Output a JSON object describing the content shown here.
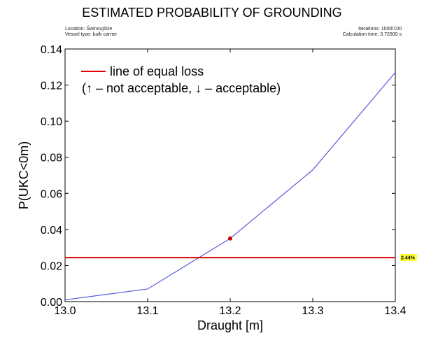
{
  "chart_data": {
    "type": "line",
    "title": "ESTIMATED PROBABILITY OF GROUNDING",
    "info_left": [
      "Location: Świnoujście",
      "Vessel type: bulk carrier"
    ],
    "info_right": [
      "Iterations: 1000/100",
      "Calculation time: 3.72600 s"
    ],
    "xlabel": "Draught [m]",
    "ylabel": "P(UKC<0m)",
    "xlim": [
      13.0,
      13.4
    ],
    "ylim": [
      0.0,
      0.14
    ],
    "x_ticks": [
      "13.0",
      "13.1",
      "13.2",
      "13.3",
      "13.4"
    ],
    "y_ticks": [
      "0.00",
      "0.02",
      "0.04",
      "0.06",
      "0.08",
      "0.10",
      "0.12",
      "0.14"
    ],
    "grid": false,
    "series": [
      {
        "x": [
          13.0,
          13.1,
          13.2,
          13.3,
          13.4
        ],
        "y": [
          0.001,
          0.007,
          0.035,
          0.073,
          0.127
        ],
        "color": "#5a5ae0"
      }
    ],
    "highlight_point": {
      "x": 13.2,
      "y": 0.035,
      "color": "#cc0000"
    },
    "reference_line": {
      "y": 0.0244,
      "label": "2.44%",
      "color": "#e00000",
      "tag_color": "#ffff33"
    },
    "legend": {
      "position": "top-left",
      "entry": "line of equal loss",
      "note": "(↑ – not acceptable, ↓ – acceptable)"
    }
  }
}
